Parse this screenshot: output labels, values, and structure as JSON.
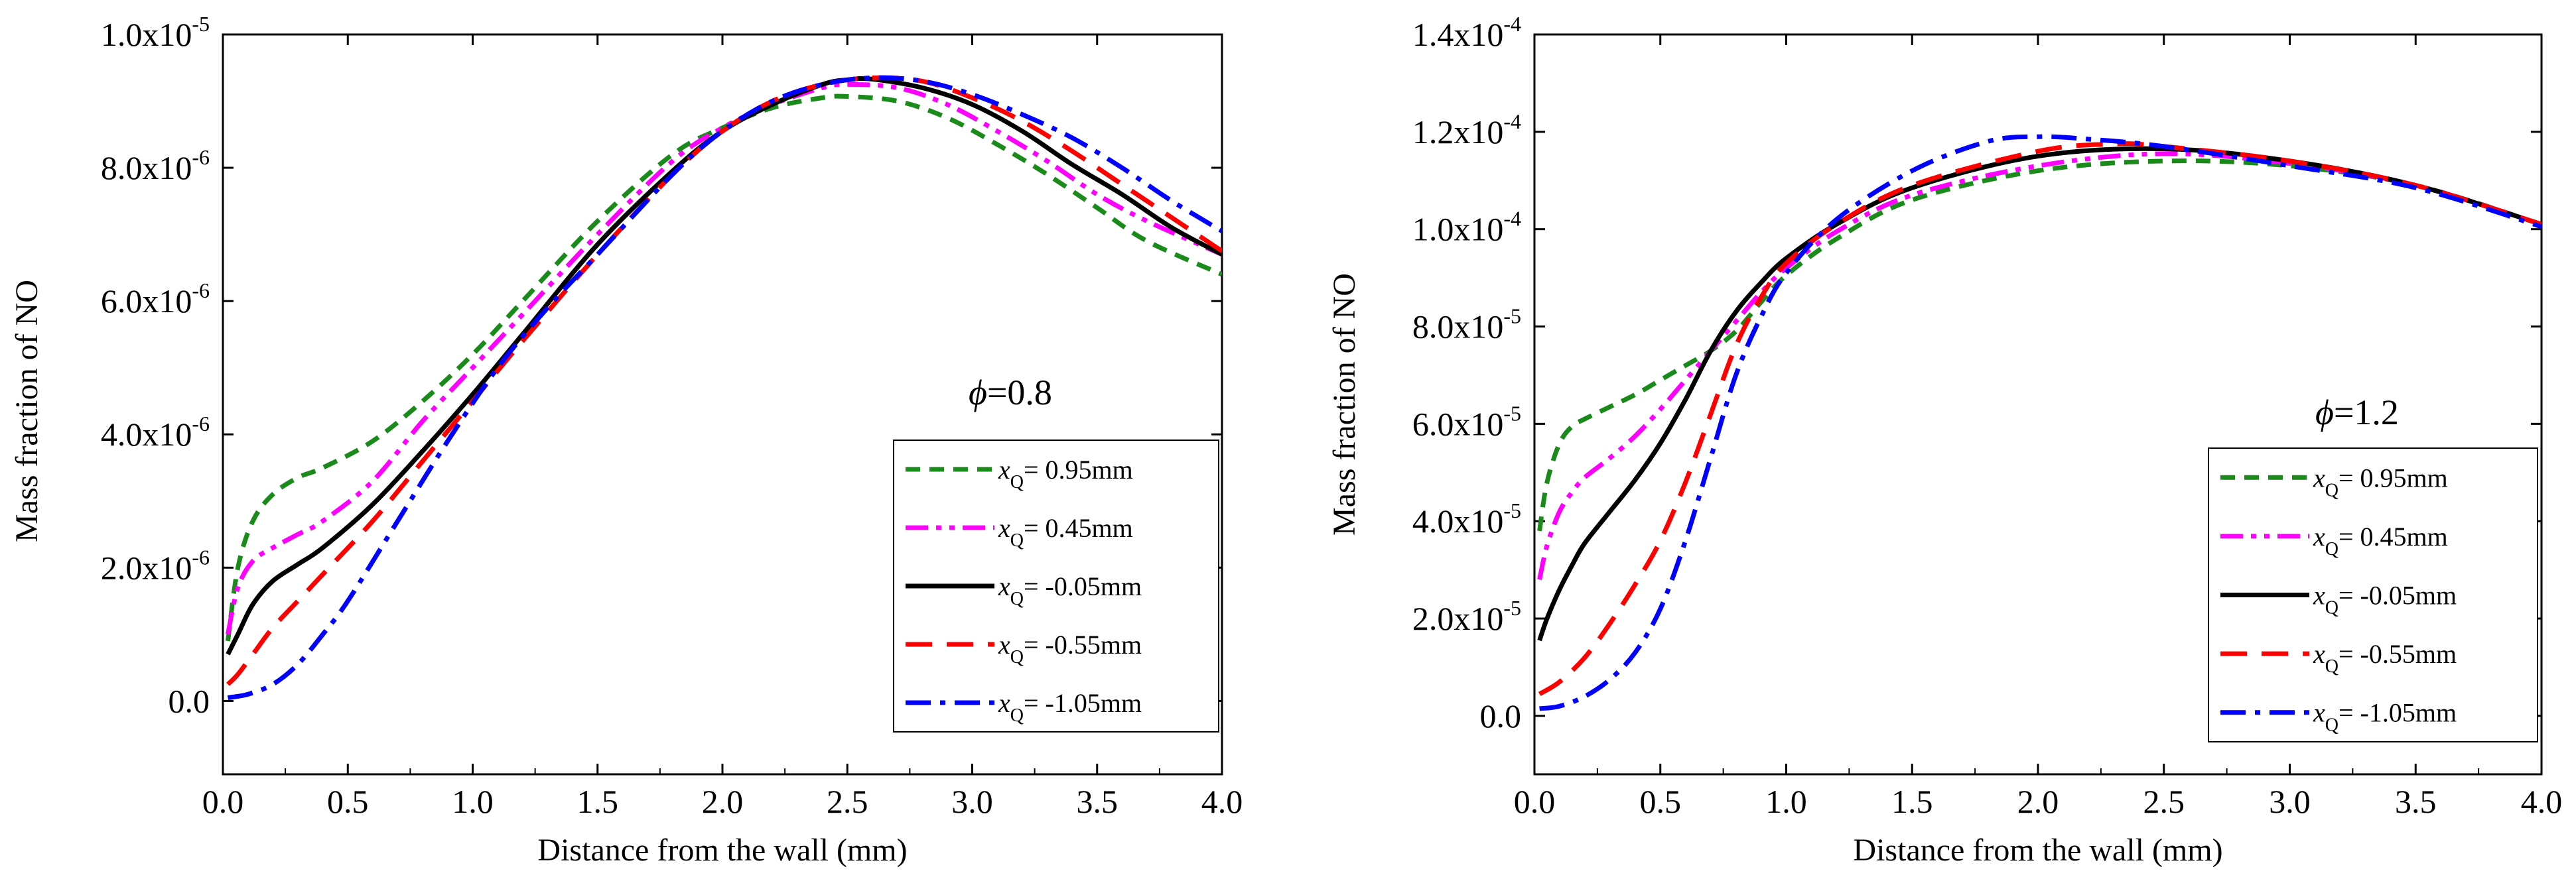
{
  "chart_data": [
    {
      "type": "line",
      "xlabel": "Distance from the wall (mm)",
      "ylabel": "Mass fraction of NO",
      "xlim": [
        0,
        4.0
      ],
      "ylim": [
        -1.1e-06,
        1e-05
      ],
      "xticks": [
        "0.0",
        "0.5",
        "1.0",
        "1.5",
        "2.0",
        "2.5",
        "3.0",
        "3.5",
        "4.0"
      ],
      "yticks": [
        {
          "value": 0,
          "mant": "0.0",
          "exp": ""
        },
        {
          "value": 2e-06,
          "mant": "2.0x10",
          "exp": "-6"
        },
        {
          "value": 4e-06,
          "mant": "4.0x10",
          "exp": "-6"
        },
        {
          "value": 6e-06,
          "mant": "6.0x10",
          "exp": "-6"
        },
        {
          "value": 8e-06,
          "mant": "8.0x10",
          "exp": "-6"
        },
        {
          "value": 1e-05,
          "mant": "1.0x10",
          "exp": "-5"
        }
      ],
      "annotation": {
        "symbol": "ϕ",
        "text": "=0.8"
      },
      "legend_position": "bottom-right",
      "grid": false,
      "series": [
        {
          "name": "= 0.95mm",
          "color": "#1a8a1a",
          "dash": "dash",
          "x": [
            0.02,
            0.06,
            0.12,
            0.2,
            0.3,
            0.4,
            0.6,
            0.8,
            1.0,
            1.2,
            1.5,
            1.8,
            2.0,
            2.2,
            2.4,
            2.5,
            2.7,
            2.9,
            3.1,
            3.3,
            3.5,
            3.7,
            4.0
          ],
          "y": [
            9e-07,
            2e-06,
            2.7e-06,
            3.1e-06,
            3.35e-06,
            3.5e-06,
            3.9e-06,
            4.5e-06,
            5.2e-06,
            6e-06,
            7.2e-06,
            8.2e-06,
            8.6e-06,
            8.9e-06,
            9.05e-06,
            9.07e-06,
            9e-06,
            8.75e-06,
            8.35e-06,
            7.9e-06,
            7.4e-06,
            6.9e-06,
            6.4e-06
          ]
        },
        {
          "name": "= 0.45mm",
          "color": "#ff00ff",
          "dash": "dashdotdot",
          "x": [
            0.02,
            0.06,
            0.12,
            0.2,
            0.3,
            0.4,
            0.6,
            0.8,
            1.0,
            1.2,
            1.5,
            1.8,
            2.0,
            2.2,
            2.4,
            2.5,
            2.7,
            2.9,
            3.1,
            3.3,
            3.5,
            3.7,
            4.0
          ],
          "y": [
            1e-06,
            1.7e-06,
            2.1e-06,
            2.3e-06,
            2.5e-06,
            2.7e-06,
            3.3e-06,
            4.2e-06,
            5e-06,
            5.8e-06,
            7e-06,
            8.1e-06,
            8.6e-06,
            8.95e-06,
            9.2e-06,
            9.25e-06,
            9.2e-06,
            8.95e-06,
            8.55e-06,
            8.1e-06,
            7.6e-06,
            7.2e-06,
            6.7e-06
          ]
        },
        {
          "name": "= -0.05mm",
          "color": "#000000",
          "dash": "solid",
          "x": [
            0.02,
            0.06,
            0.12,
            0.2,
            0.3,
            0.4,
            0.6,
            0.8,
            1.0,
            1.2,
            1.5,
            1.8,
            2.0,
            2.2,
            2.4,
            2.5,
            2.6,
            2.8,
            3.0,
            3.2,
            3.4,
            3.6,
            3.8,
            4.0
          ],
          "y": [
            7e-07,
            1e-06,
            1.45e-06,
            1.8e-06,
            2.05e-06,
            2.3e-06,
            2.95e-06,
            3.75e-06,
            4.6e-06,
            5.5e-06,
            6.85e-06,
            7.95e-06,
            8.55e-06,
            8.95e-06,
            9.25e-06,
            9.32e-06,
            9.33e-06,
            9.2e-06,
            8.95e-06,
            8.55e-06,
            8.05e-06,
            7.6e-06,
            7.1e-06,
            6.7e-06
          ]
        },
        {
          "name": "= -0.55mm",
          "color": "#ff0000",
          "dash": "longdash",
          "x": [
            0.02,
            0.06,
            0.12,
            0.2,
            0.3,
            0.4,
            0.6,
            0.8,
            1.0,
            1.2,
            1.5,
            1.8,
            2.0,
            2.2,
            2.4,
            2.6,
            2.8,
            3.0,
            3.2,
            3.4,
            3.6,
            3.8,
            4.0
          ],
          "y": [
            2.5e-07,
            4e-07,
            7e-07,
            1.1e-06,
            1.5e-06,
            1.9e-06,
            2.7e-06,
            3.6e-06,
            4.5e-06,
            5.4e-06,
            6.7e-06,
            7.9e-06,
            8.55e-06,
            9e-06,
            9.25e-06,
            9.35e-06,
            9.3e-06,
            9.05e-06,
            8.7e-06,
            8.25e-06,
            7.75e-06,
            7.25e-06,
            6.75e-06
          ]
        },
        {
          "name": "= -1.05mm",
          "color": "#0000ff",
          "dash": "dashdot",
          "x": [
            0.02,
            0.1,
            0.2,
            0.3,
            0.4,
            0.5,
            0.7,
            0.9,
            1.1,
            1.3,
            1.5,
            1.8,
            2.0,
            2.2,
            2.4,
            2.6,
            2.8,
            3.0,
            3.2,
            3.4,
            3.6,
            3.8,
            4.0
          ],
          "y": [
            5e-08,
            1e-07,
            2.5e-07,
            5.5e-07,
            1e-06,
            1.5e-06,
            2.7e-06,
            3.9e-06,
            5e-06,
            5.9e-06,
            6.7e-06,
            7.9e-06,
            8.55e-06,
            9e-06,
            9.25e-06,
            9.35e-06,
            9.3e-06,
            9.1e-06,
            8.8e-06,
            8.45e-06,
            8e-06,
            7.5e-06,
            7.05e-06
          ]
        }
      ]
    },
    {
      "type": "line",
      "xlabel": "Distance from the wall (mm)",
      "ylabel": "Mass fraction of NO",
      "xlim": [
        0,
        4.0
      ],
      "ylim": [
        -1.2e-05,
        0.00014
      ],
      "xticks": [
        "0.0",
        "0.5",
        "1.0",
        "1.5",
        "2.0",
        "2.5",
        "3.0",
        "3.5",
        "4.0"
      ],
      "yticks": [
        {
          "value": 0,
          "mant": "0.0",
          "exp": ""
        },
        {
          "value": 2e-05,
          "mant": "2.0x10",
          "exp": "-5"
        },
        {
          "value": 4e-05,
          "mant": "4.0x10",
          "exp": "-5"
        },
        {
          "value": 6e-05,
          "mant": "6.0x10",
          "exp": "-5"
        },
        {
          "value": 8e-05,
          "mant": "8.0x10",
          "exp": "-5"
        },
        {
          "value": 0.0001,
          "mant": "1.0x10",
          "exp": "-4"
        },
        {
          "value": 0.00012,
          "mant": "1.2x10",
          "exp": "-4"
        },
        {
          "value": 0.00014,
          "mant": "1.4x10",
          "exp": "-4"
        }
      ],
      "annotation": {
        "symbol": "ϕ",
        "text": "=1.2"
      },
      "legend_position": "bottom-right",
      "grid": false,
      "series": [
        {
          "name": "= 0.95mm",
          "color": "#1a8a1a",
          "dash": "dash",
          "x": [
            0.02,
            0.05,
            0.1,
            0.15,
            0.2,
            0.3,
            0.4,
            0.5,
            0.6,
            0.7,
            0.8,
            0.9,
            1.0,
            1.2,
            1.5,
            2.0,
            2.5,
            3.0,
            3.5,
            4.0
          ],
          "y": [
            3.8e-05,
            4.8e-05,
            5.6e-05,
            5.95e-05,
            6.1e-05,
            6.35e-05,
            6.6e-05,
            6.9e-05,
            7.2e-05,
            7.5e-05,
            7.9e-05,
            8.5e-05,
            9.05e-05,
            9.8e-05,
            0.000106,
            0.000112,
            0.000114,
            0.000113,
            0.000109,
            0.000101
          ]
        },
        {
          "name": "= 0.45mm",
          "color": "#ff00ff",
          "dash": "dashdotdot",
          "x": [
            0.02,
            0.05,
            0.1,
            0.15,
            0.2,
            0.3,
            0.4,
            0.5,
            0.6,
            0.7,
            0.8,
            0.9,
            1.0,
            1.2,
            1.5,
            2.0,
            2.5,
            3.0,
            3.5,
            4.0
          ],
          "y": [
            2.8e-05,
            3.5e-05,
            4.2e-05,
            4.6e-05,
            4.9e-05,
            5.3e-05,
            5.75e-05,
            6.3e-05,
            6.9e-05,
            7.5e-05,
            8.1e-05,
            8.7e-05,
            9.2e-05,
            9.95e-05,
            0.000107,
            0.000113,
            0.0001155,
            0.0001135,
            0.000109,
            0.000101
          ]
        },
        {
          "name": "= -0.05mm",
          "color": "#000000",
          "dash": "solid",
          "x": [
            0.02,
            0.05,
            0.1,
            0.15,
            0.2,
            0.3,
            0.4,
            0.5,
            0.6,
            0.7,
            0.8,
            0.9,
            1.0,
            1.2,
            1.5,
            2.0,
            2.5,
            3.0,
            3.5,
            4.0
          ],
          "y": [
            1.55e-05,
            2e-05,
            2.6e-05,
            3.1e-05,
            3.55e-05,
            4.2e-05,
            4.85e-05,
            5.6e-05,
            6.5e-05,
            7.5e-05,
            8.3e-05,
            8.9e-05,
            9.4e-05,
            0.000101,
            0.0001085,
            0.000115,
            0.0001165,
            0.000114,
            0.000109,
            0.000101
          ]
        },
        {
          "name": "= -0.55mm",
          "color": "#ff0000",
          "dash": "longdash",
          "x": [
            0.02,
            0.1,
            0.2,
            0.3,
            0.4,
            0.5,
            0.6,
            0.7,
            0.8,
            0.9,
            1.0,
            1.2,
            1.5,
            2.0,
            2.3,
            2.5,
            3.0,
            3.5,
            4.0
          ],
          "y": [
            4.5e-06,
            7e-06,
            1.2e-05,
            1.9e-05,
            2.7e-05,
            3.6e-05,
            4.8e-05,
            6.2e-05,
            7.6e-05,
            8.6e-05,
            9.3e-05,
            0.000101,
            0.000109,
            0.000116,
            0.0001175,
            0.000117,
            0.000114,
            0.000109,
            0.000101
          ]
        },
        {
          "name": "= -1.05mm",
          "color": "#0000ff",
          "dash": "dashdot",
          "x": [
            0.02,
            0.1,
            0.2,
            0.3,
            0.4,
            0.5,
            0.6,
            0.7,
            0.8,
            0.9,
            1.0,
            1.2,
            1.5,
            1.8,
            2.0,
            2.2,
            2.5,
            3.0,
            3.5,
            4.0
          ],
          "y": [
            1.5e-06,
            2e-06,
            4e-06,
            7.5e-06,
            1.3e-05,
            2.2e-05,
            3.6e-05,
            5.3e-05,
            7e-05,
            8.2e-05,
            9.1e-05,
            0.000102,
            0.000112,
            0.000118,
            0.000119,
            0.0001185,
            0.000117,
            0.000113,
            0.0001085,
            0.0001005
          ]
        }
      ]
    }
  ],
  "legend_symbol": "x",
  "legend_subscript": "Q"
}
